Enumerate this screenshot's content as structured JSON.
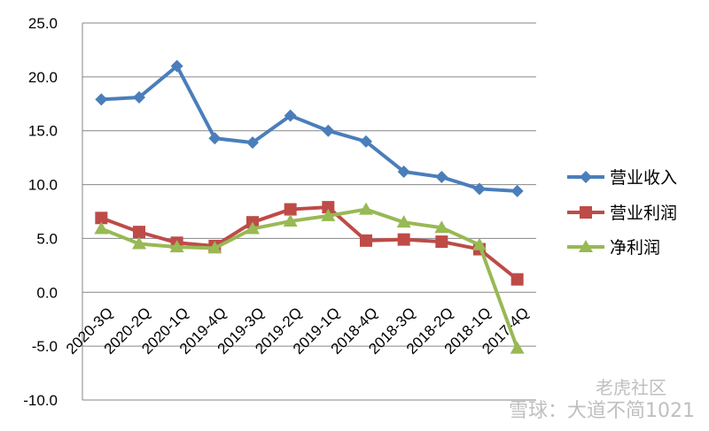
{
  "chart_data": {
    "type": "line",
    "categories": [
      "2020-3Q",
      "2020-2Q",
      "2020-1Q",
      "2019-4Q",
      "2019-3Q",
      "2019-2Q",
      "2019-1Q",
      "2018-4Q",
      "2018-3Q",
      "2018-2Q",
      "2018-1Q",
      "2017-4Q"
    ],
    "ylim": [
      -10,
      25
    ],
    "ytick_labels": [
      "25.0",
      "20.0",
      "15.0",
      "10.0",
      "5.0",
      "0.0",
      "-5.0",
      "-10.0"
    ],
    "grid": true,
    "legend_position": "right",
    "series": [
      {
        "name": "营业收入",
        "marker": "diamond",
        "color": "#4a7ebb",
        "values": [
          17.9,
          18.1,
          21.0,
          14.3,
          13.9,
          16.4,
          15.0,
          14.0,
          11.2,
          10.7,
          9.6,
          9.4
        ]
      },
      {
        "name": "营业利润",
        "marker": "square",
        "color": "#be4b48",
        "values": [
          6.9,
          5.6,
          4.6,
          4.3,
          6.5,
          7.7,
          7.9,
          4.8,
          4.9,
          4.7,
          4.0,
          1.2
        ]
      },
      {
        "name": "净利润",
        "marker": "triangle",
        "color": "#98b954",
        "values": [
          5.9,
          4.5,
          4.2,
          4.1,
          5.9,
          6.6,
          7.1,
          7.7,
          6.5,
          6.0,
          4.4,
          -5.2
        ]
      }
    ]
  },
  "watermark": {
    "left": "雪球：大道不简1021",
    "right": "老虎社区"
  }
}
